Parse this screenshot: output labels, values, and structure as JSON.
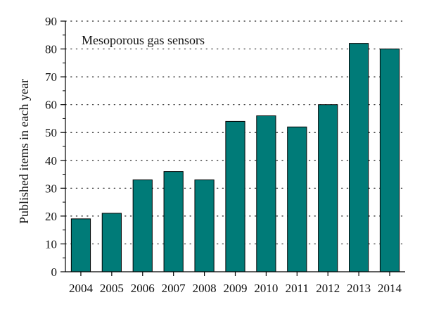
{
  "chart_data": {
    "type": "bar",
    "categories": [
      "2004",
      "2005",
      "2006",
      "2007",
      "2008",
      "2009",
      "2010",
      "2011",
      "2012",
      "2013",
      "2014"
    ],
    "values": [
      19,
      21,
      33,
      36,
      33,
      54,
      56,
      52,
      60,
      82,
      80
    ],
    "title": "",
    "annotation": "Mesoporous gas sensors",
    "xlabel": "",
    "ylabel": "Published items in each year",
    "ylim": [
      0,
      90
    ],
    "yticks": [
      0,
      10,
      20,
      30,
      40,
      50,
      60,
      70,
      80,
      90
    ],
    "grid": "horizontal dotted",
    "bar_color": "#007b78",
    "bar_edge_color": "#000000"
  }
}
